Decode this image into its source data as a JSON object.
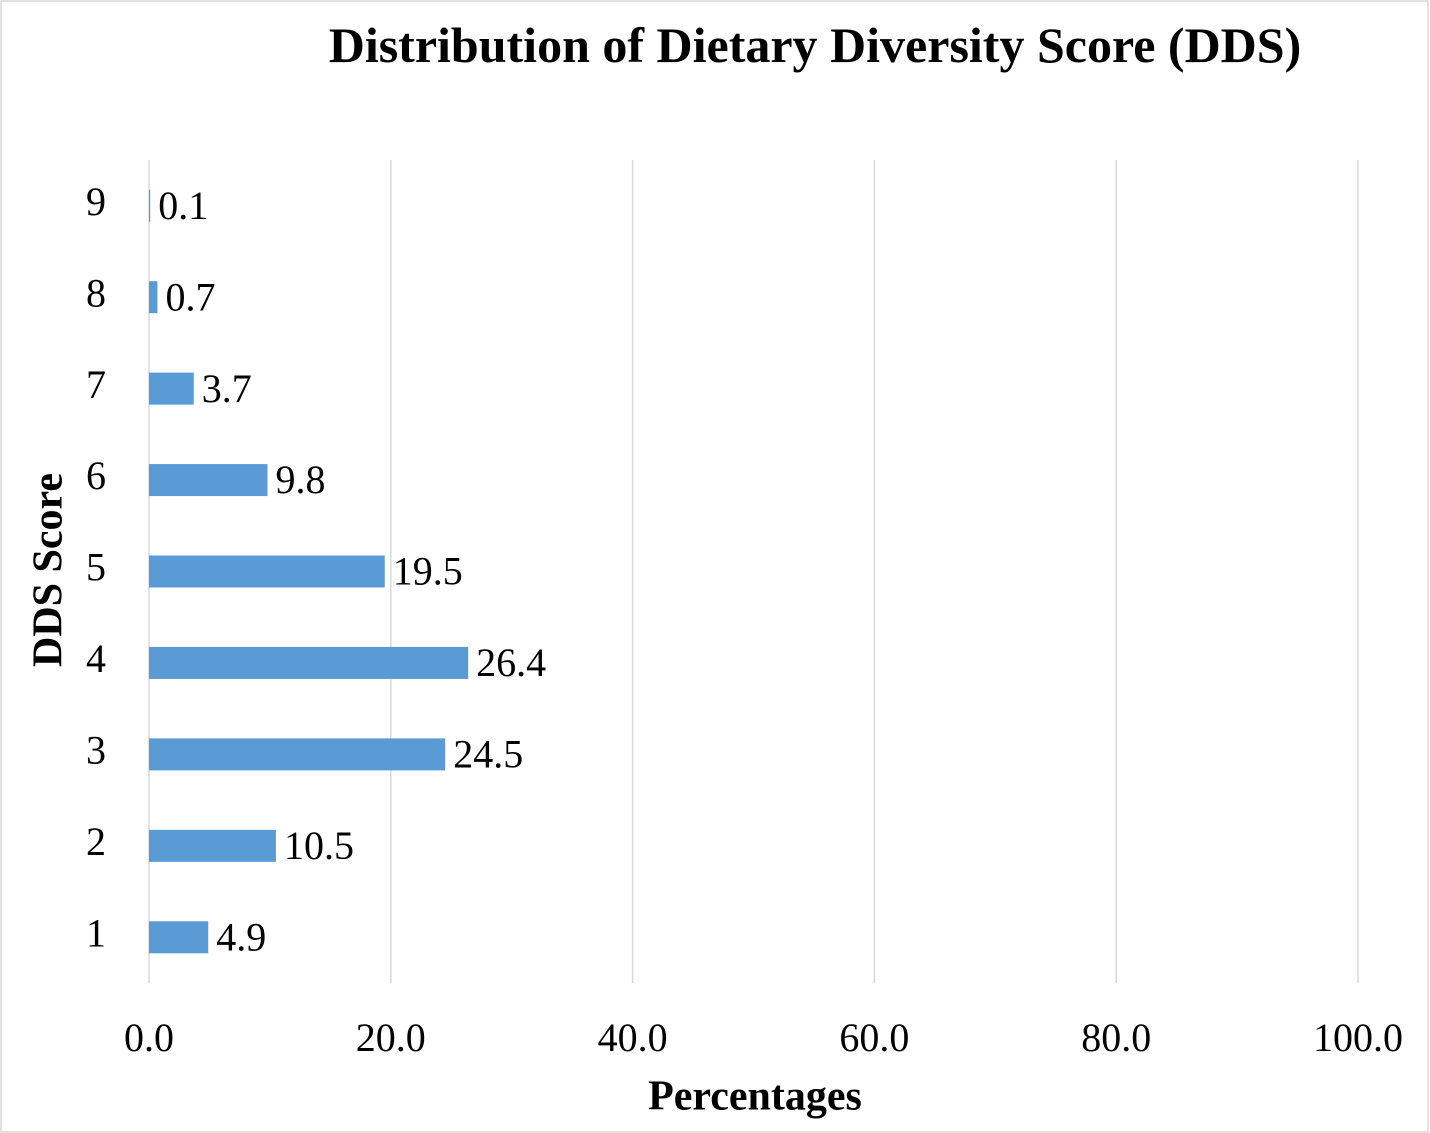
{
  "chart_data": {
    "type": "barh",
    "title": "Distribution of Dietary Diversity Score (DDS)",
    "xlabel": "Percentages",
    "ylabel": "DDS Score",
    "categories": [
      "1",
      "2",
      "3",
      "4",
      "5",
      "6",
      "7",
      "8",
      "9"
    ],
    "values": [
      4.9,
      10.5,
      24.5,
      26.4,
      19.5,
      9.8,
      3.7,
      0.7,
      0.1
    ],
    "color": "#5b9bd5",
    "xlim": [
      0,
      100
    ],
    "xticks": [
      {
        "value": 0,
        "label": "0.0"
      },
      {
        "value": 20,
        "label": "20.0"
      },
      {
        "value": 40,
        "label": "40.0"
      },
      {
        "value": 60,
        "label": "60.0"
      },
      {
        "value": 80,
        "label": "80.0"
      },
      {
        "value": 100,
        "label": "100.0"
      }
    ],
    "grid": true
  }
}
